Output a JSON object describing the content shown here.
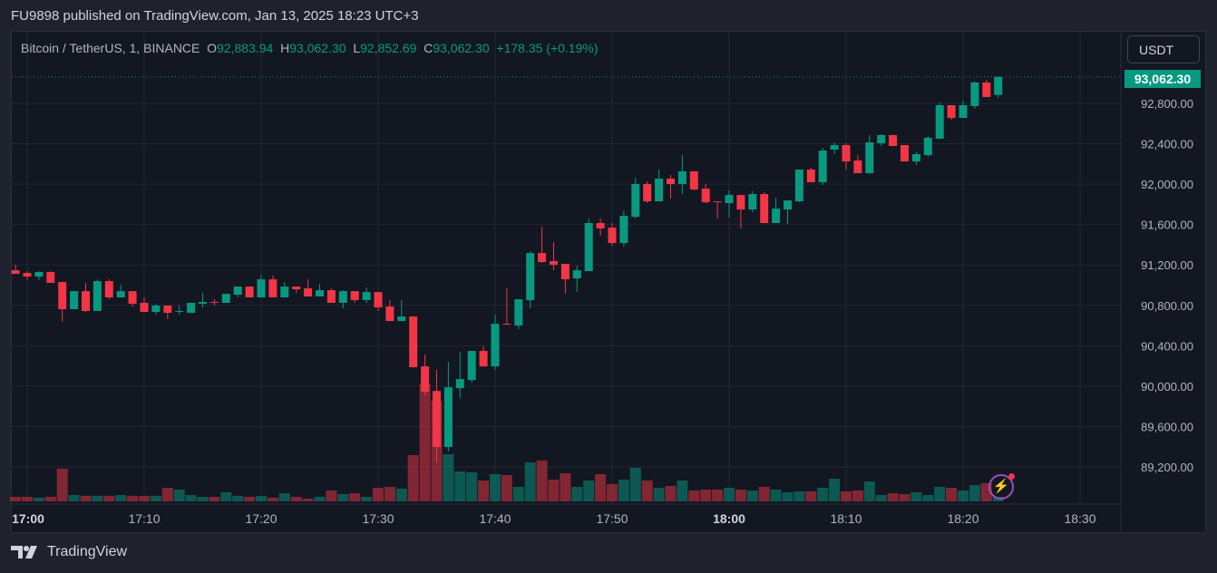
{
  "published": "FU9898 published on TradingView.com, Jan 13, 2025 18:23 UTC+3",
  "legend": {
    "symbol": "Bitcoin / TetherUS, 1, BINANCE",
    "o_label": "O",
    "o": "92,883.94",
    "h_label": "H",
    "h": "93,062.30",
    "l_label": "L",
    "l": "92,852.69",
    "c_label": "C",
    "c": "93,062.30",
    "change": "+178.35 (+0.19%)"
  },
  "currency_button": "USDT",
  "last_price": "93,062.30",
  "brand": "TradingView",
  "colors": {
    "up": "#089981",
    "down": "#f23645",
    "grid": "#232733",
    "axis_text": "#b2b5be"
  },
  "icons": {
    "alert": "lightning-icon",
    "logo": "tradingview-logo-icon"
  },
  "chart_data": {
    "type": "candlestick",
    "title": "Bitcoin / TetherUS, 1, BINANCE",
    "interval_minutes": 1,
    "ylim": [
      89000,
      93200
    ],
    "grid": true,
    "y_ticks": [
      "92,800.00",
      "92,400.00",
      "92,000.00",
      "91,600.00",
      "91,200.00",
      "90,800.00",
      "90,400.00",
      "90,000.00",
      "89,600.00",
      "89,200.00"
    ],
    "y_tick_values": [
      92800,
      92400,
      92000,
      91600,
      91200,
      90800,
      90400,
      90000,
      89600,
      89200
    ],
    "x_ticks": [
      {
        "label": "17:00",
        "bold": true
      },
      {
        "label": "17:10"
      },
      {
        "label": "17:20"
      },
      {
        "label": "17:30"
      },
      {
        "label": "17:40"
      },
      {
        "label": "17:50"
      },
      {
        "label": "18:00",
        "bold": true
      },
      {
        "label": "18:10"
      },
      {
        "label": "18:20"
      },
      {
        "label": "18:30"
      }
    ],
    "x_tick_minutes": [
      60,
      70,
      80,
      90,
      100,
      110,
      120,
      130,
      140,
      150
    ],
    "volume_units": "relative",
    "columns": [
      "time",
      "open",
      "high",
      "low",
      "close",
      "volume"
    ],
    "candles": [
      [
        "16:59",
        91148,
        91202,
        91112,
        91112,
        15
      ],
      [
        "17:00",
        91121,
        91139,
        91049,
        91085,
        15
      ],
      [
        "17:01",
        91085,
        91139,
        91049,
        91130,
        12
      ],
      [
        "17:02",
        91130,
        91139,
        91022,
        91022,
        15
      ],
      [
        "17:03",
        91031,
        91031,
        90636,
        90762,
        108
      ],
      [
        "17:04",
        90762,
        90941,
        90762,
        90941,
        21
      ],
      [
        "17:05",
        90941,
        91022,
        90735,
        90744,
        18
      ],
      [
        "17:06",
        90744,
        91058,
        90744,
        91040,
        18
      ],
      [
        "17:07",
        91040,
        91058,
        90860,
        90879,
        18
      ],
      [
        "17:08",
        90879,
        91004,
        90879,
        90941,
        21
      ],
      [
        "17:09",
        90941,
        90941,
        90789,
        90816,
        18
      ],
      [
        "17:10",
        90825,
        90879,
        90735,
        90735,
        18
      ],
      [
        "17:11",
        90735,
        90816,
        90708,
        90798,
        18
      ],
      [
        "17:12",
        90798,
        90798,
        90663,
        90726,
        45
      ],
      [
        "17:13",
        90735,
        90798,
        90708,
        90744,
        39
      ],
      [
        "17:14",
        90726,
        90825,
        90726,
        90825,
        21
      ],
      [
        "17:15",
        90816,
        90923,
        90780,
        90834,
        15
      ],
      [
        "17:16",
        90834,
        90860,
        90798,
        90825,
        15
      ],
      [
        "17:17",
        90825,
        90914,
        90825,
        90914,
        30
      ],
      [
        "17:18",
        90905,
        90986,
        90879,
        90986,
        18
      ],
      [
        "17:19",
        90986,
        90986,
        90879,
        90879,
        15
      ],
      [
        "17:20",
        90879,
        91103,
        90879,
        91058,
        18
      ],
      [
        "17:21",
        91058,
        91094,
        90879,
        90879,
        12
      ],
      [
        "17:22",
        90879,
        91031,
        90879,
        90986,
        27
      ],
      [
        "17:23",
        90986,
        90986,
        90923,
        90959,
        15
      ],
      [
        "17:24",
        90968,
        91058,
        90888,
        90888,
        9
      ],
      [
        "17:25",
        90888,
        91013,
        90888,
        90950,
        15
      ],
      [
        "17:26",
        90950,
        90968,
        90825,
        90825,
        36
      ],
      [
        "17:27",
        90825,
        90950,
        90771,
        90941,
        24
      ],
      [
        "17:28",
        90941,
        90941,
        90825,
        90852,
        27
      ],
      [
        "17:29",
        90852,
        90977,
        90825,
        90932,
        15
      ],
      [
        "17:30",
        90932,
        90932,
        90744,
        90780,
        45
      ],
      [
        "17:31",
        90789,
        90852,
        90645,
        90645,
        48
      ],
      [
        "17:32",
        90645,
        90852,
        90645,
        90690,
        42
      ],
      [
        "17:33",
        90690,
        90690,
        90187,
        90187,
        153
      ],
      [
        "17:34",
        90196,
        90313,
        89908,
        89944,
        390
      ],
      [
        "17:35",
        89953,
        90160,
        89244,
        89397,
        333
      ],
      [
        "17:36",
        89397,
        90241,
        89352,
        89989,
        156
      ],
      [
        "17:37",
        89980,
        90340,
        89882,
        90070,
        99
      ],
      [
        "17:38",
        90061,
        90349,
        90034,
        90349,
        96
      ],
      [
        "17:39",
        90349,
        90393,
        90196,
        90196,
        69
      ],
      [
        "17:40",
        90196,
        90708,
        90160,
        90618,
        90
      ],
      [
        "17:41",
        90618,
        90977,
        90609,
        90609,
        87
      ],
      [
        "17:42",
        90600,
        90860,
        90564,
        90860,
        48
      ],
      [
        "17:43",
        90851,
        91336,
        90771,
        91318,
        129
      ],
      [
        "17:44",
        91318,
        91579,
        91220,
        91229,
        135
      ],
      [
        "17:45",
        91238,
        91426,
        91148,
        91202,
        72
      ],
      [
        "17:46",
        91211,
        91211,
        90914,
        91058,
        93
      ],
      [
        "17:47",
        91067,
        91193,
        90932,
        91148,
        48
      ],
      [
        "17:48",
        91139,
        91660,
        91139,
        91615,
        69
      ],
      [
        "17:49",
        91615,
        91660,
        91489,
        91561,
        90
      ],
      [
        "17:50",
        91570,
        91615,
        91390,
        91417,
        57
      ],
      [
        "17:51",
        91417,
        91740,
        91381,
        91686,
        72
      ],
      [
        "17:52",
        91677,
        92064,
        91660,
        92001,
        111
      ],
      [
        "17:53",
        92001,
        92028,
        91812,
        91830,
        69
      ],
      [
        "17:54",
        91830,
        92145,
        91830,
        92055,
        45
      ],
      [
        "17:55",
        92055,
        92091,
        91857,
        92001,
        51
      ],
      [
        "17:56",
        92001,
        92288,
        91902,
        92127,
        69
      ],
      [
        "17:57",
        92127,
        92127,
        91938,
        91947,
        36
      ],
      [
        "17:58",
        91956,
        92001,
        91812,
        91821,
        39
      ],
      [
        "17:59",
        91830,
        91830,
        91660,
        91821,
        39
      ],
      [
        "18:00",
        91812,
        91938,
        91668,
        91893,
        45
      ],
      [
        "18:01",
        91893,
        91893,
        91561,
        91749,
        39
      ],
      [
        "18:02",
        91749,
        91929,
        91722,
        91902,
        36
      ],
      [
        "18:03",
        91902,
        91920,
        91615,
        91615,
        48
      ],
      [
        "18:04",
        91615,
        91866,
        91615,
        91758,
        39
      ],
      [
        "18:05",
        91749,
        91839,
        91606,
        91839,
        30
      ],
      [
        "18:06",
        91830,
        92145,
        91821,
        92145,
        33
      ],
      [
        "18:07",
        92145,
        92163,
        92019,
        92019,
        33
      ],
      [
        "18:08",
        92019,
        92360,
        91992,
        92333,
        45
      ],
      [
        "18:09",
        92342,
        92414,
        92297,
        92387,
        75
      ],
      [
        "18:10",
        92387,
        92405,
        92145,
        92225,
        33
      ],
      [
        "18:11",
        92234,
        92288,
        92109,
        92109,
        36
      ],
      [
        "18:12",
        92109,
        92486,
        92100,
        92414,
        66
      ],
      [
        "18:13",
        92405,
        92495,
        92378,
        92486,
        21
      ],
      [
        "18:14",
        92486,
        92486,
        92378,
        92378,
        27
      ],
      [
        "18:15",
        92387,
        92387,
        92225,
        92225,
        24
      ],
      [
        "18:16",
        92225,
        92324,
        92189,
        92297,
        30
      ],
      [
        "18:17",
        92288,
        92477,
        92270,
        92459,
        21
      ],
      [
        "18:18",
        92450,
        92809,
        92450,
        92782,
        48
      ],
      [
        "18:19",
        92782,
        92782,
        92638,
        92656,
        45
      ],
      [
        "18:20",
        92656,
        92827,
        92656,
        92782,
        36
      ],
      [
        "18:21",
        92773,
        93016,
        92746,
        93007,
        54
      ],
      [
        "18:22",
        93007,
        93034,
        92863,
        92863,
        60
      ],
      [
        "18:23",
        92883.94,
        93062.3,
        92852.69,
        93062.3,
        15
      ]
    ],
    "last_price": 93062.3
  }
}
